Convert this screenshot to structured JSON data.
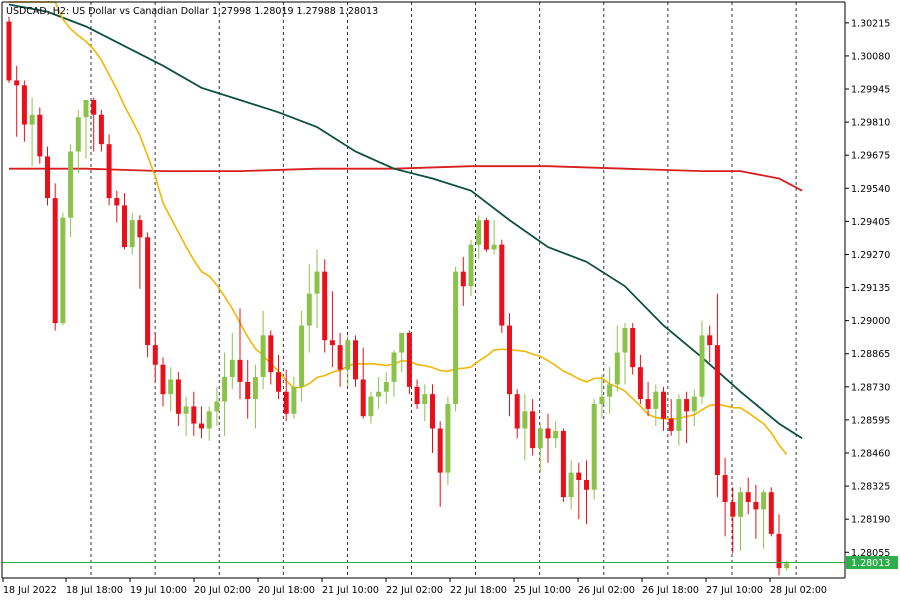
{
  "header": {
    "symbol": "USDCAD, H2:",
    "description": "US Dollar vs Canadian Dollar",
    "ohlc": "1.27998 1.28019 1.27988 1.28013"
  },
  "chart_data": {
    "type": "candlestick",
    "ylim": [
      1.2795,
      1.303
    ],
    "y_ticks": [
      "1.30215",
      "1.30080",
      "1.29945",
      "1.29810",
      "1.29675",
      "1.29540",
      "1.29405",
      "1.29270",
      "1.29135",
      "1.29000",
      "1.28865",
      "1.28730",
      "1.28595",
      "1.28460",
      "1.28325",
      "1.28190",
      "1.28055"
    ],
    "x_labels": [
      "18 Jul 2022",
      "18 Jul 18:00",
      "19 Jul 10:00",
      "20 Jul 02:00",
      "20 Jul 18:00",
      "21 Jul 10:00",
      "22 Jul 02:00",
      "22 Jul 18:00",
      "25 Jul 10:00",
      "26 Jul 02:00",
      "26 Jul 18:00",
      "27 Jul 10:00",
      "28 Jul 02:00"
    ],
    "current_price": "1.28013",
    "colors": {
      "bull": "#8bc34a",
      "bear": "#e8101a",
      "price_line": "#2eae4a",
      "ma_fast": "#f2b705",
      "ma_mid": "#0d5040",
      "ma_slow": "#d81e1e",
      "grid": "#000000",
      "axis": "#000000"
    },
    "candles": [
      {
        "o": 1.3022,
        "h": 1.3024,
        "l": 1.2997,
        "c": 1.2998
      },
      {
        "o": 1.2998,
        "h": 1.3004,
        "l": 1.2975,
        "c": 1.2996
      },
      {
        "o": 1.2996,
        "h": 1.2998,
        "l": 1.2973,
        "c": 1.298
      },
      {
        "o": 1.298,
        "h": 1.2991,
        "l": 1.2963,
        "c": 1.2984
      },
      {
        "o": 1.2984,
        "h": 1.2987,
        "l": 1.2964,
        "c": 1.2967
      },
      {
        "o": 1.2967,
        "h": 1.2971,
        "l": 1.2947,
        "c": 1.295
      },
      {
        "o": 1.295,
        "h": 1.2956,
        "l": 1.2896,
        "c": 1.2899
      },
      {
        "o": 1.2899,
        "h": 1.2944,
        "l": 1.2898,
        "c": 1.2942
      },
      {
        "o": 1.2942,
        "h": 1.2972,
        "l": 1.2934,
        "c": 1.2969
      },
      {
        "o": 1.2969,
        "h": 1.2986,
        "l": 1.296,
        "c": 1.2983
      },
      {
        "o": 1.2983,
        "h": 1.299,
        "l": 1.2966,
        "c": 1.299
      },
      {
        "o": 1.299,
        "h": 1.2991,
        "l": 1.2969,
        "c": 1.2984
      },
      {
        "o": 1.2984,
        "h": 1.2986,
        "l": 1.2969,
        "c": 1.2972
      },
      {
        "o": 1.2972,
        "h": 1.2976,
        "l": 1.2947,
        "c": 1.295
      },
      {
        "o": 1.295,
        "h": 1.2953,
        "l": 1.294,
        "c": 1.2947
      },
      {
        "o": 1.2947,
        "h": 1.2952,
        "l": 1.2929,
        "c": 1.293
      },
      {
        "o": 1.293,
        "h": 1.2944,
        "l": 1.2927,
        "c": 1.2941
      },
      {
        "o": 1.2941,
        "h": 1.2943,
        "l": 1.2913,
        "c": 1.2934
      },
      {
        "o": 1.2934,
        "h": 1.2936,
        "l": 1.2885,
        "c": 1.289
      },
      {
        "o": 1.289,
        "h": 1.2895,
        "l": 1.2875,
        "c": 1.2882
      },
      {
        "o": 1.2882,
        "h": 1.2885,
        "l": 1.2865,
        "c": 1.287
      },
      {
        "o": 1.287,
        "h": 1.2881,
        "l": 1.2863,
        "c": 1.2876
      },
      {
        "o": 1.2876,
        "h": 1.2879,
        "l": 1.2857,
        "c": 1.2862
      },
      {
        "o": 1.2862,
        "h": 1.2869,
        "l": 1.2853,
        "c": 1.2865
      },
      {
        "o": 1.2865,
        "h": 1.2871,
        "l": 1.2853,
        "c": 1.2858
      },
      {
        "o": 1.2858,
        "h": 1.2865,
        "l": 1.2852,
        "c": 1.2856
      },
      {
        "o": 1.2856,
        "h": 1.2865,
        "l": 1.2851,
        "c": 1.2863
      },
      {
        "o": 1.2863,
        "h": 1.2873,
        "l": 1.2857,
        "c": 1.2867
      },
      {
        "o": 1.2867,
        "h": 1.2887,
        "l": 1.2853,
        "c": 1.2877
      },
      {
        "o": 1.2877,
        "h": 1.2895,
        "l": 1.2872,
        "c": 1.2884
      },
      {
        "o": 1.2884,
        "h": 1.2905,
        "l": 1.2868,
        "c": 1.2875
      },
      {
        "o": 1.2875,
        "h": 1.2884,
        "l": 1.286,
        "c": 1.2868
      },
      {
        "o": 1.2868,
        "h": 1.2882,
        "l": 1.2856,
        "c": 1.2877
      },
      {
        "o": 1.2877,
        "h": 1.2904,
        "l": 1.2872,
        "c": 1.2894
      },
      {
        "o": 1.2894,
        "h": 1.2896,
        "l": 1.2874,
        "c": 1.2879
      },
      {
        "o": 1.2879,
        "h": 1.2886,
        "l": 1.2868,
        "c": 1.2871
      },
      {
        "o": 1.2871,
        "h": 1.288,
        "l": 1.2859,
        "c": 1.2862
      },
      {
        "o": 1.2862,
        "h": 1.2877,
        "l": 1.286,
        "c": 1.2873
      },
      {
        "o": 1.2873,
        "h": 1.2904,
        "l": 1.2867,
        "c": 1.2898
      },
      {
        "o": 1.2898,
        "h": 1.2923,
        "l": 1.2887,
        "c": 1.2911
      },
      {
        "o": 1.2911,
        "h": 1.2929,
        "l": 1.2897,
        "c": 1.292
      },
      {
        "o": 1.292,
        "h": 1.2925,
        "l": 1.2887,
        "c": 1.2892
      },
      {
        "o": 1.2892,
        "h": 1.2912,
        "l": 1.2881,
        "c": 1.289
      },
      {
        "o": 1.289,
        "h": 1.2895,
        "l": 1.2873,
        "c": 1.288
      },
      {
        "o": 1.288,
        "h": 1.2894,
        "l": 1.2873,
        "c": 1.2892
      },
      {
        "o": 1.2892,
        "h": 1.2894,
        "l": 1.2873,
        "c": 1.2876
      },
      {
        "o": 1.2876,
        "h": 1.2889,
        "l": 1.286,
        "c": 1.2861
      },
      {
        "o": 1.2861,
        "h": 1.2871,
        "l": 1.2858,
        "c": 1.2869
      },
      {
        "o": 1.2869,
        "h": 1.2877,
        "l": 1.2864,
        "c": 1.2871
      },
      {
        "o": 1.2871,
        "h": 1.2879,
        "l": 1.2866,
        "c": 1.2875
      },
      {
        "o": 1.2875,
        "h": 1.2888,
        "l": 1.2869,
        "c": 1.2887
      },
      {
        "o": 1.2887,
        "h": 1.2895,
        "l": 1.2879,
        "c": 1.2895
      },
      {
        "o": 1.2895,
        "h": 1.2896,
        "l": 1.287,
        "c": 1.2873
      },
      {
        "o": 1.2873,
        "h": 1.2876,
        "l": 1.2864,
        "c": 1.2866
      },
      {
        "o": 1.2866,
        "h": 1.2874,
        "l": 1.2859,
        "c": 1.287
      },
      {
        "o": 1.287,
        "h": 1.2874,
        "l": 1.2846,
        "c": 1.2856
      },
      {
        "o": 1.2856,
        "h": 1.2859,
        "l": 1.2824,
        "c": 1.2838
      },
      {
        "o": 1.2838,
        "h": 1.2869,
        "l": 1.2833,
        "c": 1.2866
      },
      {
        "o": 1.2866,
        "h": 1.2922,
        "l": 1.2863,
        "c": 1.292
      },
      {
        "o": 1.292,
        "h": 1.2926,
        "l": 1.2906,
        "c": 1.2914
      },
      {
        "o": 1.2914,
        "h": 1.2933,
        "l": 1.291,
        "c": 1.2931
      },
      {
        "o": 1.2931,
        "h": 1.2943,
        "l": 1.2925,
        "c": 1.2941
      },
      {
        "o": 1.2941,
        "h": 1.2942,
        "l": 1.2928,
        "c": 1.2929
      },
      {
        "o": 1.2929,
        "h": 1.2941,
        "l": 1.2927,
        "c": 1.2931
      },
      {
        "o": 1.2931,
        "h": 1.2933,
        "l": 1.2895,
        "c": 1.2898
      },
      {
        "o": 1.2898,
        "h": 1.2903,
        "l": 1.2861,
        "c": 1.287
      },
      {
        "o": 1.287,
        "h": 1.2872,
        "l": 1.2852,
        "c": 1.2856
      },
      {
        "o": 1.2856,
        "h": 1.287,
        "l": 1.2843,
        "c": 1.2863
      },
      {
        "o": 1.2863,
        "h": 1.2868,
        "l": 1.2845,
        "c": 1.2848
      },
      {
        "o": 1.2848,
        "h": 1.2858,
        "l": 1.2838,
        "c": 1.2856
      },
      {
        "o": 1.2856,
        "h": 1.2862,
        "l": 1.2842,
        "c": 1.2852
      },
      {
        "o": 1.2852,
        "h": 1.2859,
        "l": 1.2848,
        "c": 1.2855
      },
      {
        "o": 1.2855,
        "h": 1.2856,
        "l": 1.2826,
        "c": 1.2828
      },
      {
        "o": 1.2828,
        "h": 1.2843,
        "l": 1.2823,
        "c": 1.2838
      },
      {
        "o": 1.2838,
        "h": 1.2842,
        "l": 1.2819,
        "c": 1.2835
      },
      {
        "o": 1.2835,
        "h": 1.2843,
        "l": 1.2817,
        "c": 1.2831
      },
      {
        "o": 1.2831,
        "h": 1.2868,
        "l": 1.2827,
        "c": 1.2866
      },
      {
        "o": 1.2866,
        "h": 1.2878,
        "l": 1.286,
        "c": 1.2869
      },
      {
        "o": 1.2869,
        "h": 1.2881,
        "l": 1.2862,
        "c": 1.2874
      },
      {
        "o": 1.2874,
        "h": 1.2898,
        "l": 1.2871,
        "c": 1.2887
      },
      {
        "o": 1.2887,
        "h": 1.2899,
        "l": 1.2874,
        "c": 1.2897
      },
      {
        "o": 1.2897,
        "h": 1.2899,
        "l": 1.2878,
        "c": 1.2881
      },
      {
        "o": 1.2881,
        "h": 1.2886,
        "l": 1.2866,
        "c": 1.2868
      },
      {
        "o": 1.2868,
        "h": 1.2875,
        "l": 1.2861,
        "c": 1.2864
      },
      {
        "o": 1.2864,
        "h": 1.2874,
        "l": 1.2857,
        "c": 1.2871
      },
      {
        "o": 1.2871,
        "h": 1.2873,
        "l": 1.2855,
        "c": 1.286
      },
      {
        "o": 1.286,
        "h": 1.2868,
        "l": 1.2853,
        "c": 1.2855
      },
      {
        "o": 1.2855,
        "h": 1.287,
        "l": 1.2849,
        "c": 1.2868
      },
      {
        "o": 1.2868,
        "h": 1.2871,
        "l": 1.285,
        "c": 1.2863
      },
      {
        "o": 1.2863,
        "h": 1.2872,
        "l": 1.2857,
        "c": 1.2869
      },
      {
        "o": 1.2869,
        "h": 1.29,
        "l": 1.2866,
        "c": 1.2894
      },
      {
        "o": 1.2894,
        "h": 1.2898,
        "l": 1.2883,
        "c": 1.289
      },
      {
        "o": 1.289,
        "h": 1.2911,
        "l": 1.2828,
        "c": 1.2837
      },
      {
        "o": 1.2837,
        "h": 1.2844,
        "l": 1.2812,
        "c": 1.2826
      },
      {
        "o": 1.2826,
        "h": 1.2832,
        "l": 1.2805,
        "c": 1.282
      },
      {
        "o": 1.282,
        "h": 1.2832,
        "l": 1.2806,
        "c": 1.283
      },
      {
        "o": 1.283,
        "h": 1.2836,
        "l": 1.2821,
        "c": 1.2826
      },
      {
        "o": 1.2826,
        "h": 1.2833,
        "l": 1.2811,
        "c": 1.2823
      },
      {
        "o": 1.2823,
        "h": 1.2831,
        "l": 1.2807,
        "c": 1.283
      },
      {
        "o": 1.283,
        "h": 1.2832,
        "l": 1.2812,
        "c": 1.2813
      },
      {
        "o": 1.2813,
        "h": 1.2821,
        "l": 1.2796,
        "c": 1.2799
      },
      {
        "o": 1.2799,
        "h": 1.2802,
        "l": 1.2798,
        "c": 1.2801
      }
    ],
    "series": [
      {
        "points": [
          [
            0,
            1.2962
          ],
          [
            10,
            1.2962
          ],
          [
            20,
            1.2961
          ],
          [
            30,
            1.2961
          ],
          [
            40,
            1.2962
          ],
          [
            50,
            1.2962
          ],
          [
            60,
            1.2963
          ],
          [
            70,
            1.2963
          ],
          [
            80,
            1.2962
          ],
          [
            90,
            1.2961
          ],
          [
            95,
            1.2961
          ],
          [
            100,
            1.2958
          ],
          [
            103,
            1.2953
          ]
        ]
      },
      {
        "points": [
          [
            0,
            1.3029
          ],
          [
            5,
            1.3026
          ],
          [
            10,
            1.302
          ],
          [
            15,
            1.3012
          ],
          [
            20,
            1.3004
          ],
          [
            25,
            1.2995
          ],
          [
            30,
            1.299
          ],
          [
            35,
            1.2985
          ],
          [
            40,
            1.2979
          ],
          [
            45,
            1.2969
          ],
          [
            50,
            1.2962
          ],
          [
            55,
            1.2958
          ],
          [
            60,
            1.2953
          ],
          [
            65,
            1.2941
          ],
          [
            70,
            1.293
          ],
          [
            75,
            1.2924
          ],
          [
            80,
            1.2914
          ],
          [
            85,
            1.2898
          ],
          [
            90,
            1.2885
          ],
          [
            95,
            1.2871
          ],
          [
            100,
            1.2858
          ],
          [
            103,
            1.2852
          ]
        ]
      }
    ]
  }
}
